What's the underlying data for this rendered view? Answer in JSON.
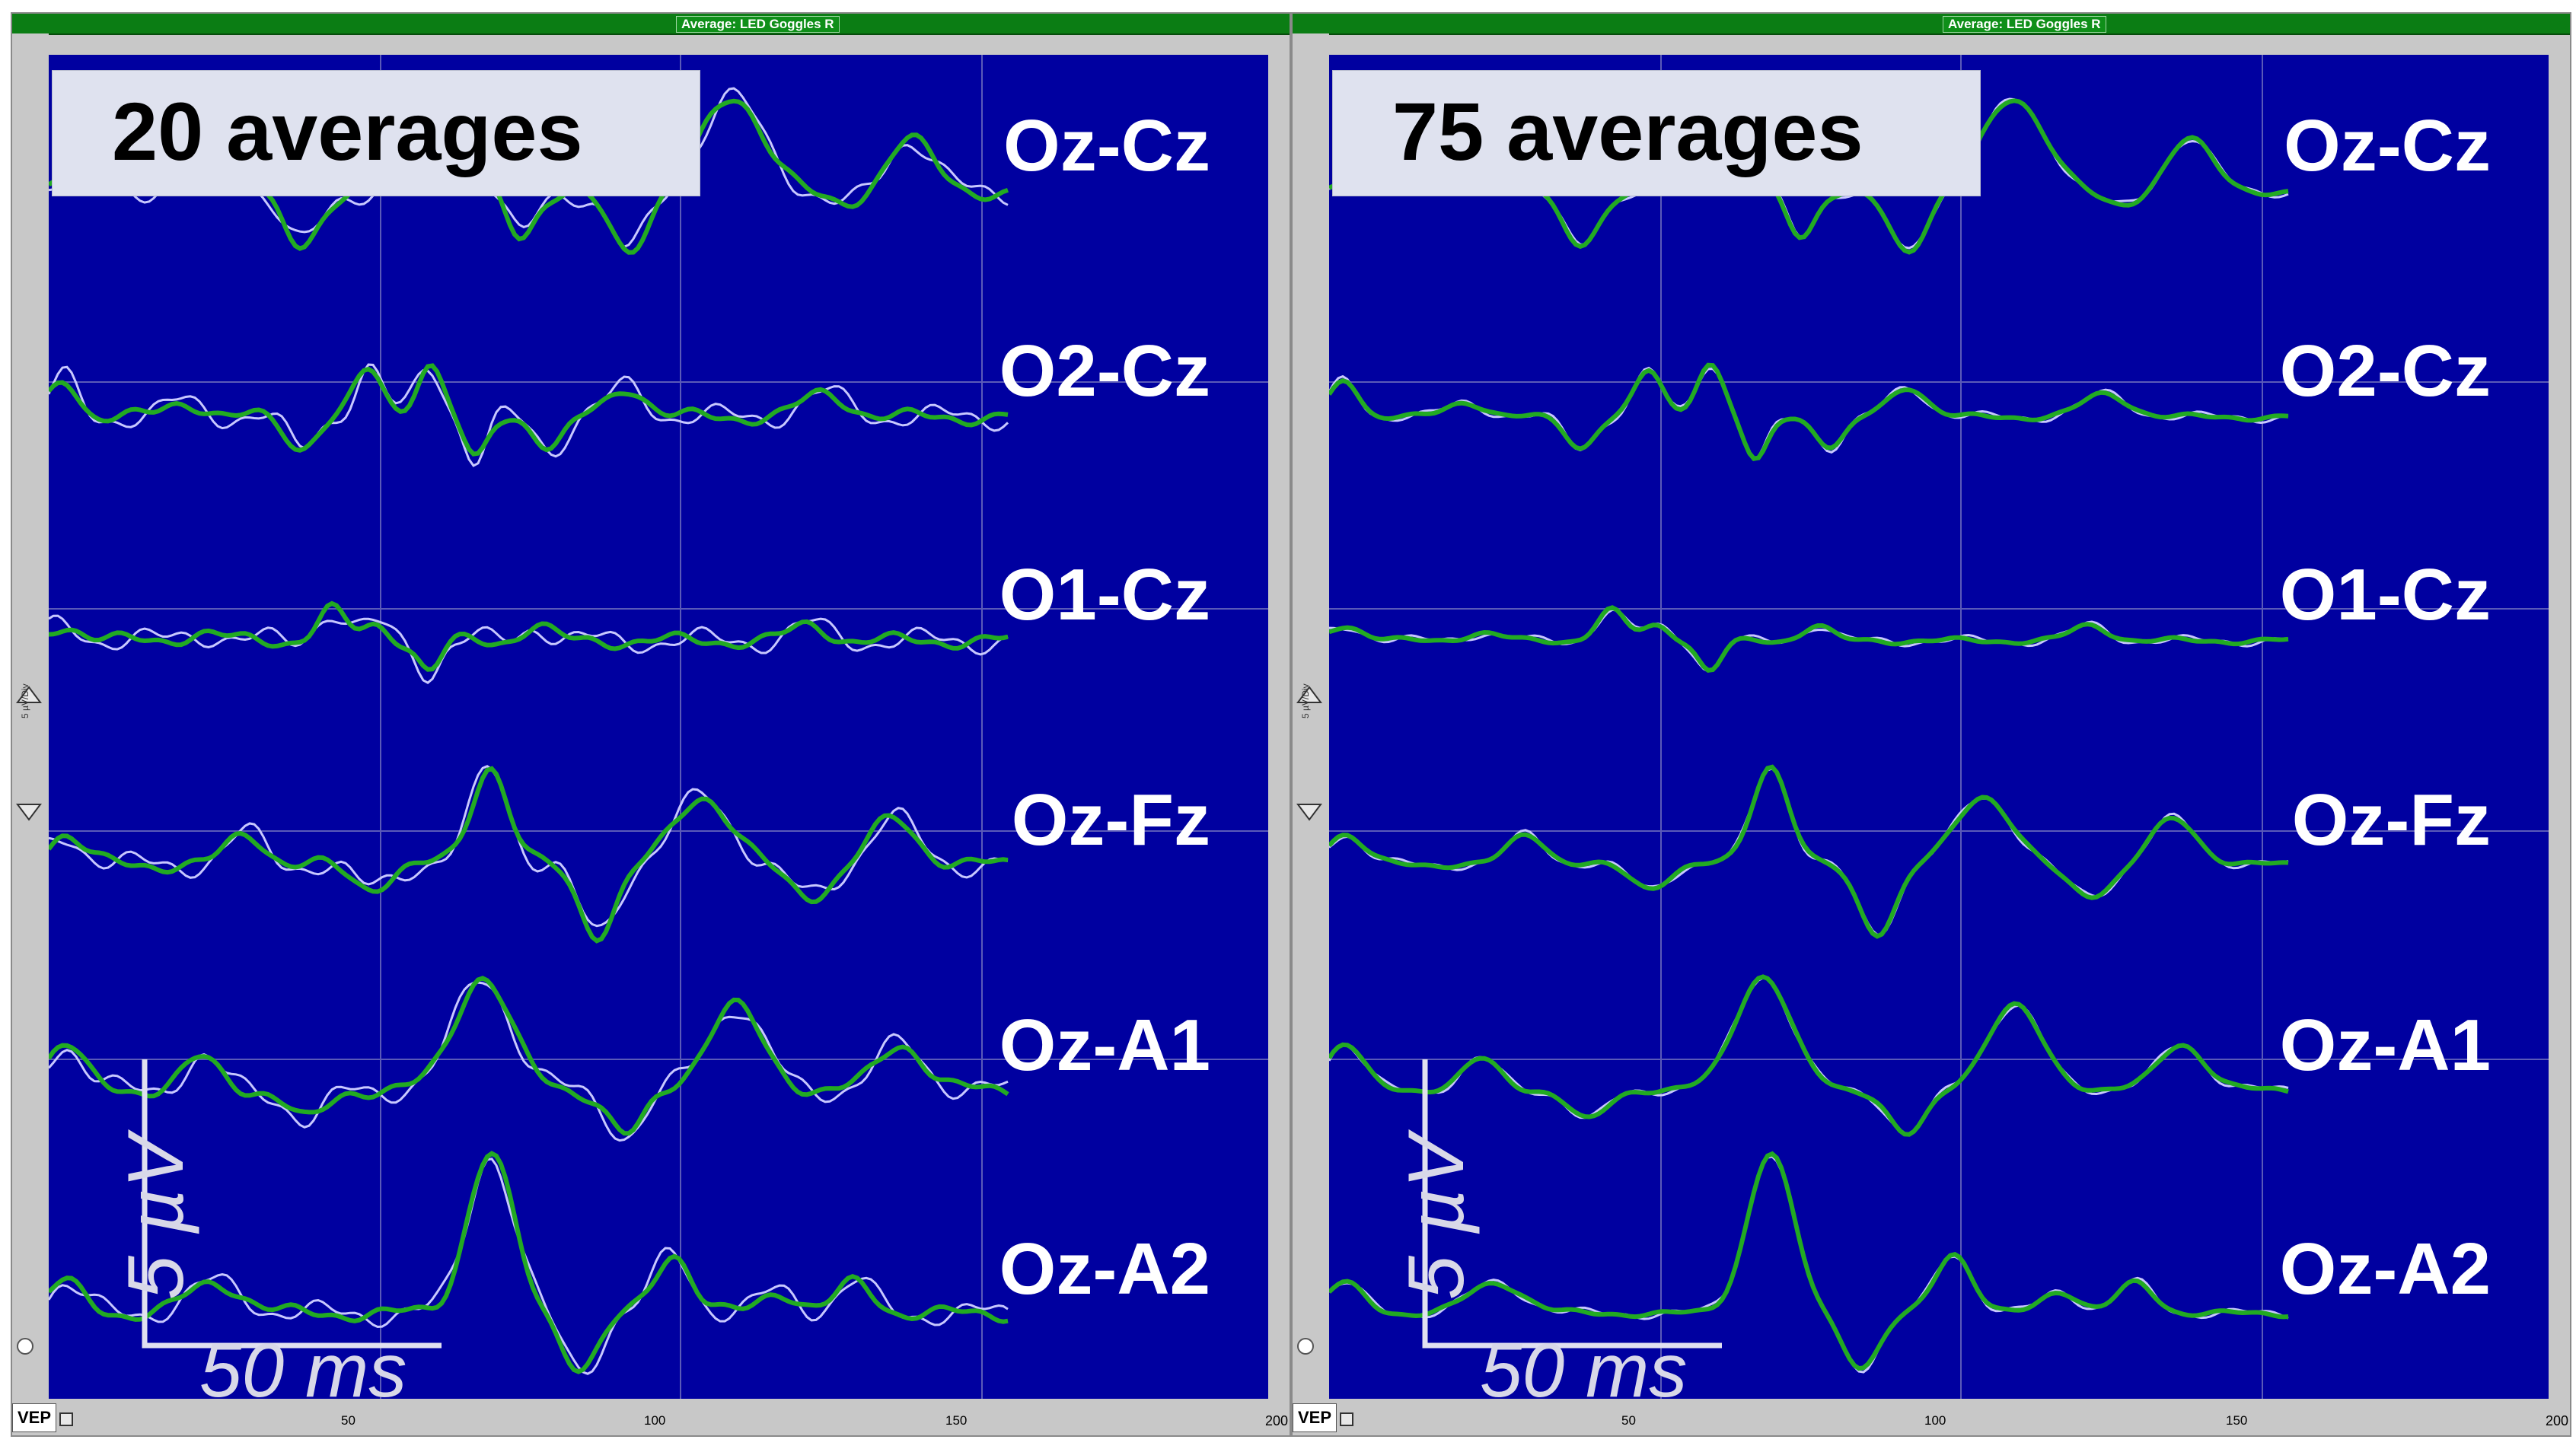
{
  "window_title": "Average: LED Goggles R",
  "channels": [
    "Oz-Cz",
    "O2-Cz",
    "O1-Cz",
    "Oz-Fz",
    "Oz-A1",
    "Oz-A2"
  ],
  "x_ticks": [
    "50",
    "100",
    "150"
  ],
  "x_end": "200",
  "mode_button": "VEP",
  "amplitude_scale_label": "5 µV/Div",
  "scale_bar": {
    "amplitude": "5 µV",
    "time": "50 ms"
  },
  "panels": [
    {
      "label": "20 averages"
    },
    {
      "label": "75 averages"
    }
  ],
  "colors": {
    "background": "#0000a0",
    "trace_green": "#22aa22",
    "trace_white": "#c8c8ff",
    "titlebar": "#0b7d14"
  }
}
